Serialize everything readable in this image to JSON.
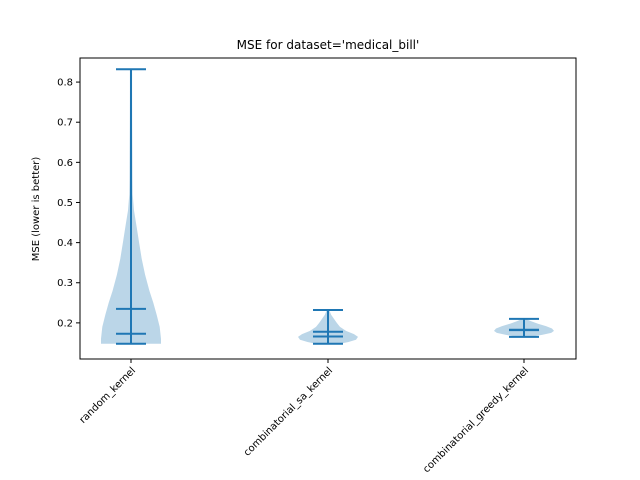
{
  "chart_data": {
    "type": "violin",
    "title": "MSE for dataset='medical_bill'",
    "xlabel": "",
    "ylabel": "MSE (lower is better)",
    "ylim": [
      0.11,
      0.86
    ],
    "yticks": [
      0.2,
      0.3,
      0.4,
      0.5,
      0.6,
      0.7,
      0.8
    ],
    "categories": [
      "random_kernel",
      "combinatorial_sa_kernel",
      "combinatorial_greedy_kernel"
    ],
    "colors": {
      "body": "#1f77b4",
      "body_alpha": 0.3,
      "lines": "#1f77b4"
    },
    "series": [
      {
        "category": "random_kernel",
        "min": 0.148,
        "max": 0.832,
        "mean": 0.235,
        "median": 0.173,
        "density": [
          [
            0.148,
            0.07
          ],
          [
            0.16,
            0.07
          ],
          [
            0.19,
            0.067
          ],
          [
            0.22,
            0.06
          ],
          [
            0.25,
            0.052
          ],
          [
            0.28,
            0.043
          ],
          [
            0.32,
            0.033
          ],
          [
            0.36,
            0.025
          ],
          [
            0.4,
            0.019
          ],
          [
            0.44,
            0.013
          ],
          [
            0.48,
            0.007
          ],
          [
            0.52,
            0.004
          ],
          [
            0.56,
            0.0035
          ],
          [
            0.62,
            0.0032
          ],
          [
            0.7,
            0.0028
          ],
          [
            0.78,
            0.0025
          ],
          [
            0.832,
            0.0025
          ]
        ]
      },
      {
        "category": "combinatorial_sa_kernel",
        "min": 0.148,
        "max": 0.232,
        "mean": 0.178,
        "median": 0.166,
        "density": [
          [
            0.148,
            0.03
          ],
          [
            0.152,
            0.05
          ],
          [
            0.158,
            0.07
          ],
          [
            0.165,
            0.075
          ],
          [
            0.172,
            0.065
          ],
          [
            0.18,
            0.045
          ],
          [
            0.19,
            0.03
          ],
          [
            0.2,
            0.022
          ],
          [
            0.21,
            0.015
          ],
          [
            0.22,
            0.008
          ],
          [
            0.232,
            0.003
          ]
        ]
      },
      {
        "category": "combinatorial_greedy_kernel",
        "min": 0.165,
        "max": 0.21,
        "mean": 0.183,
        "median": 0.182,
        "density": [
          [
            0.165,
            0.015
          ],
          [
            0.17,
            0.045
          ],
          [
            0.175,
            0.068
          ],
          [
            0.18,
            0.075
          ],
          [
            0.186,
            0.07
          ],
          [
            0.192,
            0.055
          ],
          [
            0.198,
            0.035
          ],
          [
            0.204,
            0.018
          ],
          [
            0.21,
            0.004
          ]
        ]
      }
    ]
  }
}
